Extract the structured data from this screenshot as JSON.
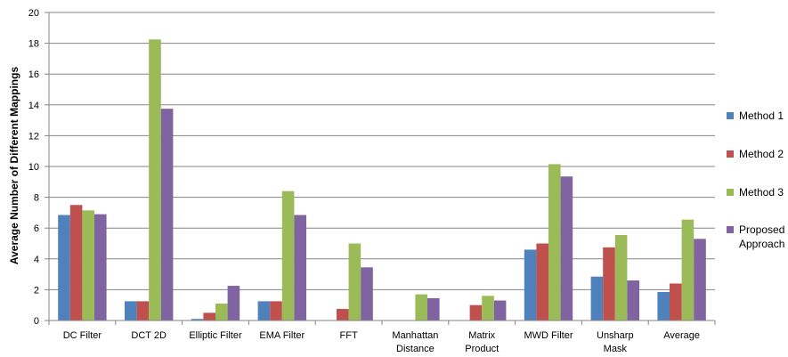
{
  "chart_data": {
    "type": "bar",
    "ylabel": "Average Number of Different Mappings",
    "xlabel": "",
    "ylim": [
      0,
      20
    ],
    "yticks": [
      0,
      2,
      4,
      6,
      8,
      10,
      12,
      14,
      16,
      18,
      20
    ],
    "grid": "horizontal",
    "legend_position": "right",
    "categories": [
      [
        "DC Filter"
      ],
      [
        "DCT 2D"
      ],
      [
        "Elliptic Filter"
      ],
      [
        "EMA Filter"
      ],
      [
        "FFT"
      ],
      [
        "Manhattan",
        "Distance"
      ],
      [
        "Matrix",
        "Product"
      ],
      [
        "MWD Filter"
      ],
      [
        "Unsharp",
        "Mask"
      ],
      [
        "Average"
      ]
    ],
    "series": [
      {
        "name": [
          "Method 1"
        ],
        "color": "#4F81BD",
        "values": [
          6.85,
          1.25,
          0.1,
          1.25,
          0,
          0,
          0,
          4.6,
          2.85,
          1.85
        ]
      },
      {
        "name": [
          "Method 2"
        ],
        "color": "#C0504D",
        "values": [
          7.5,
          1.25,
          0.5,
          1.25,
          0.75,
          0,
          1.0,
          5.0,
          4.75,
          2.4
        ]
      },
      {
        "name": [
          "Method 3"
        ],
        "color": "#9BBB59",
        "values": [
          7.15,
          18.25,
          1.1,
          8.4,
          5.0,
          1.7,
          1.6,
          10.15,
          5.55,
          6.55
        ]
      },
      {
        "name": [
          "Proposed",
          "Approach"
        ],
        "color": "#8064A2",
        "values": [
          6.9,
          13.75,
          2.25,
          6.85,
          3.45,
          1.45,
          1.3,
          9.35,
          2.6,
          5.3
        ]
      }
    ]
  }
}
